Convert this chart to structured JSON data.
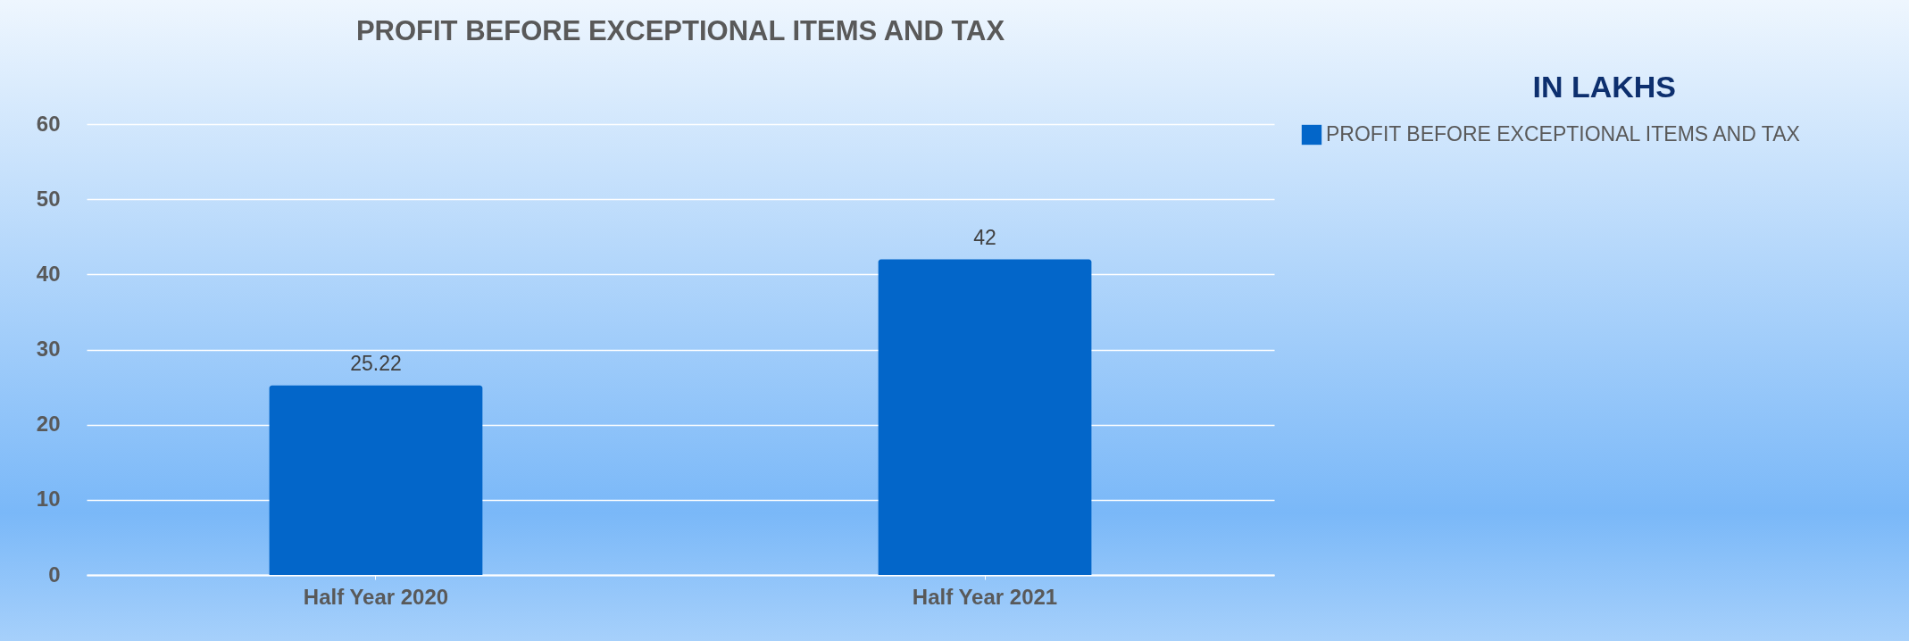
{
  "chart_data": {
    "type": "bar",
    "title": "PROFIT BEFORE EXCEPTIONAL ITEMS AND TAX",
    "categories": [
      "Half Year 2020",
      "Half Year 2021"
    ],
    "series": [
      {
        "name": "PROFIT BEFORE EXCEPTIONAL ITEMS AND TAX",
        "color": "#0366c9",
        "values": [
          25.22,
          42
        ]
      }
    ],
    "ylim": [
      0,
      60
    ],
    "yticks": [
      0,
      10,
      20,
      30,
      40,
      50,
      60
    ],
    "grid": "y",
    "legend": "right",
    "data_labels": true,
    "annotations": [
      "IN LAKHS"
    ]
  }
}
